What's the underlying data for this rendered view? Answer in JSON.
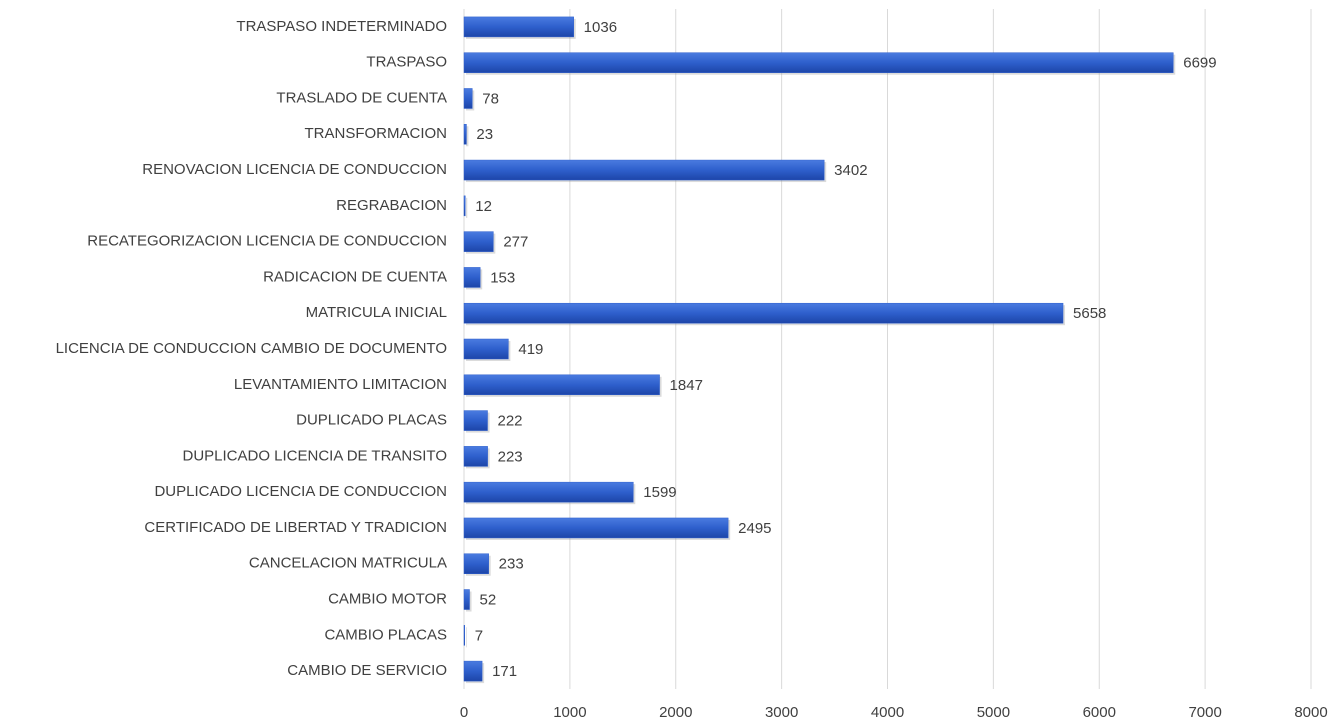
{
  "chart_data": {
    "type": "hbar",
    "categories": [
      "TRASPASO INDETERMINADO",
      "TRASPASO",
      "TRASLADO DE CUENTA",
      "TRANSFORMACION",
      "RENOVACION LICENCIA DE CONDUCCION",
      "REGRABACION",
      "RECATEGORIZACION LICENCIA DE CONDUCCION",
      "RADICACION DE CUENTA",
      "MATRICULA INICIAL",
      "LICENCIA DE CONDUCCION CAMBIO DE DOCUMENTO",
      "LEVANTAMIENTO LIMITACION",
      "DUPLICADO PLACAS",
      "DUPLICADO LICENCIA DE TRANSITO",
      "DUPLICADO LICENCIA DE CONDUCCION",
      "CERTIFICADO DE LIBERTAD Y TRADICION",
      "CANCELACION MATRICULA",
      "CAMBIO MOTOR",
      "CAMBIO PLACAS",
      "CAMBIO DE SERVICIO"
    ],
    "values": [
      1036,
      6699,
      78,
      23,
      3402,
      12,
      277,
      153,
      5658,
      419,
      1847,
      222,
      223,
      1599,
      2495,
      233,
      52,
      7,
      171
    ],
    "color": "#2e5fcc",
    "xlim": [
      0,
      8000
    ],
    "xticks": [
      0,
      1000,
      2000,
      3000,
      4000,
      5000,
      6000,
      7000,
      8000
    ],
    "grid": true
  }
}
